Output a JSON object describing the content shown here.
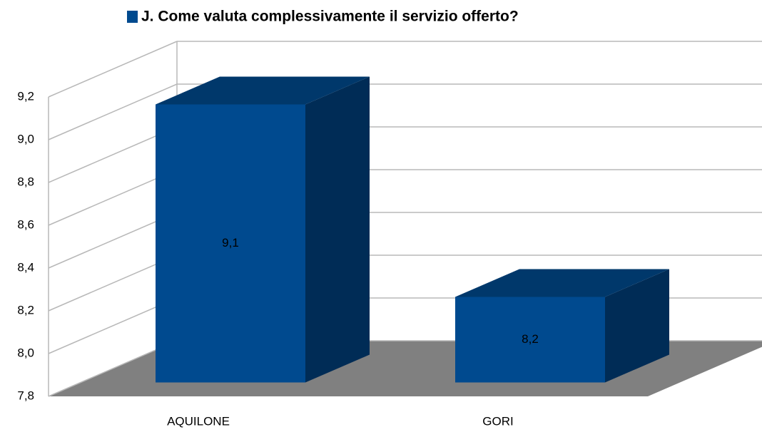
{
  "chart_data": {
    "type": "bar3d",
    "categories": [
      "AQUILONE",
      "GORI"
    ],
    "series": [
      {
        "name": "J. Come valuta complessivamente il servizio offerto?",
        "color": "#004a8f",
        "values": [
          9.1,
          8.2
        ],
        "value_labels": [
          "9,1",
          "8,2"
        ]
      }
    ],
    "ylim": [
      7.8,
      9.2
    ],
    "yticks": [
      {
        "value": 7.8,
        "label": "7,8"
      },
      {
        "value": 8.0,
        "label": "8,0"
      },
      {
        "value": 8.2,
        "label": "8,2"
      },
      {
        "value": 8.4,
        "label": "8,4"
      },
      {
        "value": 8.6,
        "label": "8,6"
      },
      {
        "value": 8.8,
        "label": "8,8"
      },
      {
        "value": 9.0,
        "label": "9,0"
      },
      {
        "value": 9.2,
        "label": "9,2"
      }
    ],
    "grid": true,
    "legend": "top"
  }
}
